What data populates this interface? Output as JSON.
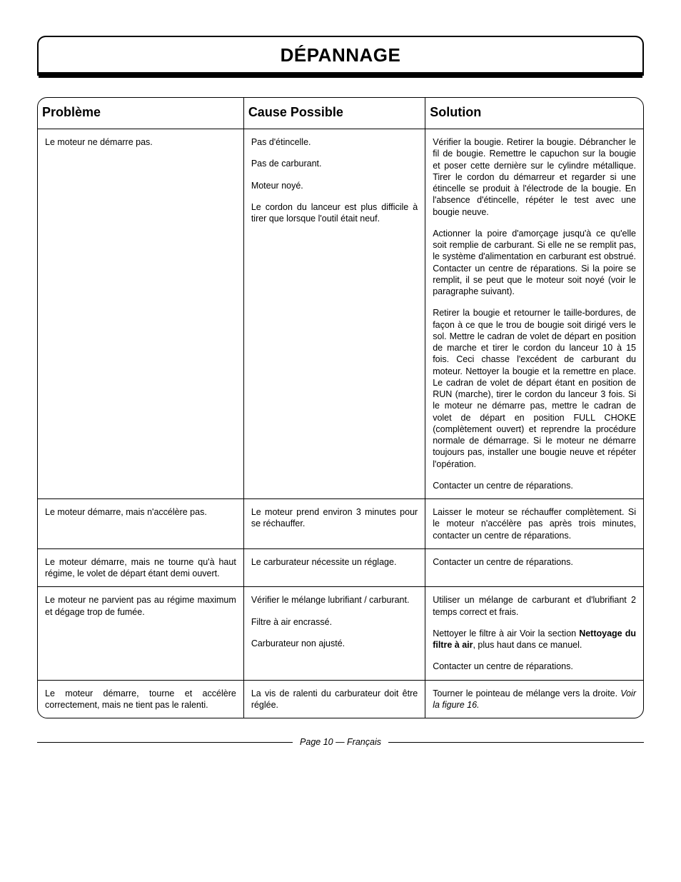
{
  "page_title": "DÉPANNAGE",
  "headers": {
    "problem": "Problème",
    "cause": "Cause Possible",
    "solution": "Solution"
  },
  "rows": [
    {
      "problem": "Le moteur ne démarre pas.",
      "causes": [
        "Pas d'étincelle.",
        "Pas de carburant.",
        "Moteur noyé.",
        "Le cordon du lanceur est plus difficile à tirer que lorsque l'outil était neuf."
      ],
      "solutions": [
        "Vérifier la bougie. Retirer la bougie. Débrancher le fil de bougie. Remettre le capuchon sur la bougie et poser cette dernière sur le cylindre métallique. Tirer le cordon du démarreur et regarder si une étincelle se produit à l'électrode de la bougie. En l'absence d'étincelle, répéter le test avec une bougie neuve.",
        "Actionner la poire d'amorçage jusqu'à ce qu'elle soit remplie de carburant. Si elle ne se remplit pas, le système d'alimentation en carburant est obstrué. Contacter un centre de réparations. Si la poire se remplit, il se peut que le moteur soit noyé (voir le paragraphe suivant).",
        "Retirer la bougie et retourner le taille-bordures, de façon à ce que le trou de bougie soit dirigé vers le sol. Mettre le cadran de volet de départ en position de marche et tirer le cordon du lanceur 10 à 15 fois. Ceci chasse l'excédent de carburant du moteur. Nettoyer la bougie et la remettre en place. Le cadran de volet de départ étant en position de RUN (marche), tirer le cordon du lanceur 3 fois. Si le moteur ne démarre pas, mettre le cadran de volet de départ en position FULL CHOKE (complètement ouvert) et reprendre la procédure normale de démarrage. Si le moteur ne démarre toujours pas, installer une bougie neuve et répéter l'opération.",
        "Contacter un centre de réparations."
      ]
    },
    {
      "problem": "Le moteur démarre, mais n'accélère pas.",
      "causes": [
        "Le moteur prend environ 3 minutes pour se réchauffer."
      ],
      "solutions": [
        "Laisser le moteur se réchauffer complètement. Si le moteur n'accélère pas après trois minutes, contacter un centre de réparations."
      ]
    },
    {
      "problem": "Le moteur démarre, mais ne tourne qu'à haut régime, le volet de départ étant demi ouvert.",
      "causes": [
        "Le carburateur nécessite un réglage."
      ],
      "solutions": [
        "Contacter un centre de réparations."
      ]
    },
    {
      "problem": "Le moteur ne parvient pas au régime maximum et dégage trop de fumée.",
      "causes": [
        "Vérifier le mélange lubrifiant / carburant.",
        "Filtre à air encrassé.",
        "Carburateur non ajusté."
      ],
      "solutions": [
        "Utiliser un mélange de carburant et d'lubrifiant 2 temps correct et frais.",
        "Nettoyer le filtre à air  Voir la section <b>Nettoyage du filtre à air</b>, plus haut dans ce manuel.",
        "Contacter un centre de réparations."
      ]
    },
    {
      "problem": "Le moteur démarre, tourne et accélère correctement, mais ne tient pas le ralenti.",
      "causes": [
        "La vis de ralenti du carburateur doit être réglée."
      ],
      "solutions": [
        "Tourner le pointeau de mélange vers la droite. <i>Voir la figure 16.</i>"
      ]
    }
  ],
  "footer": "Page 10  — Français"
}
